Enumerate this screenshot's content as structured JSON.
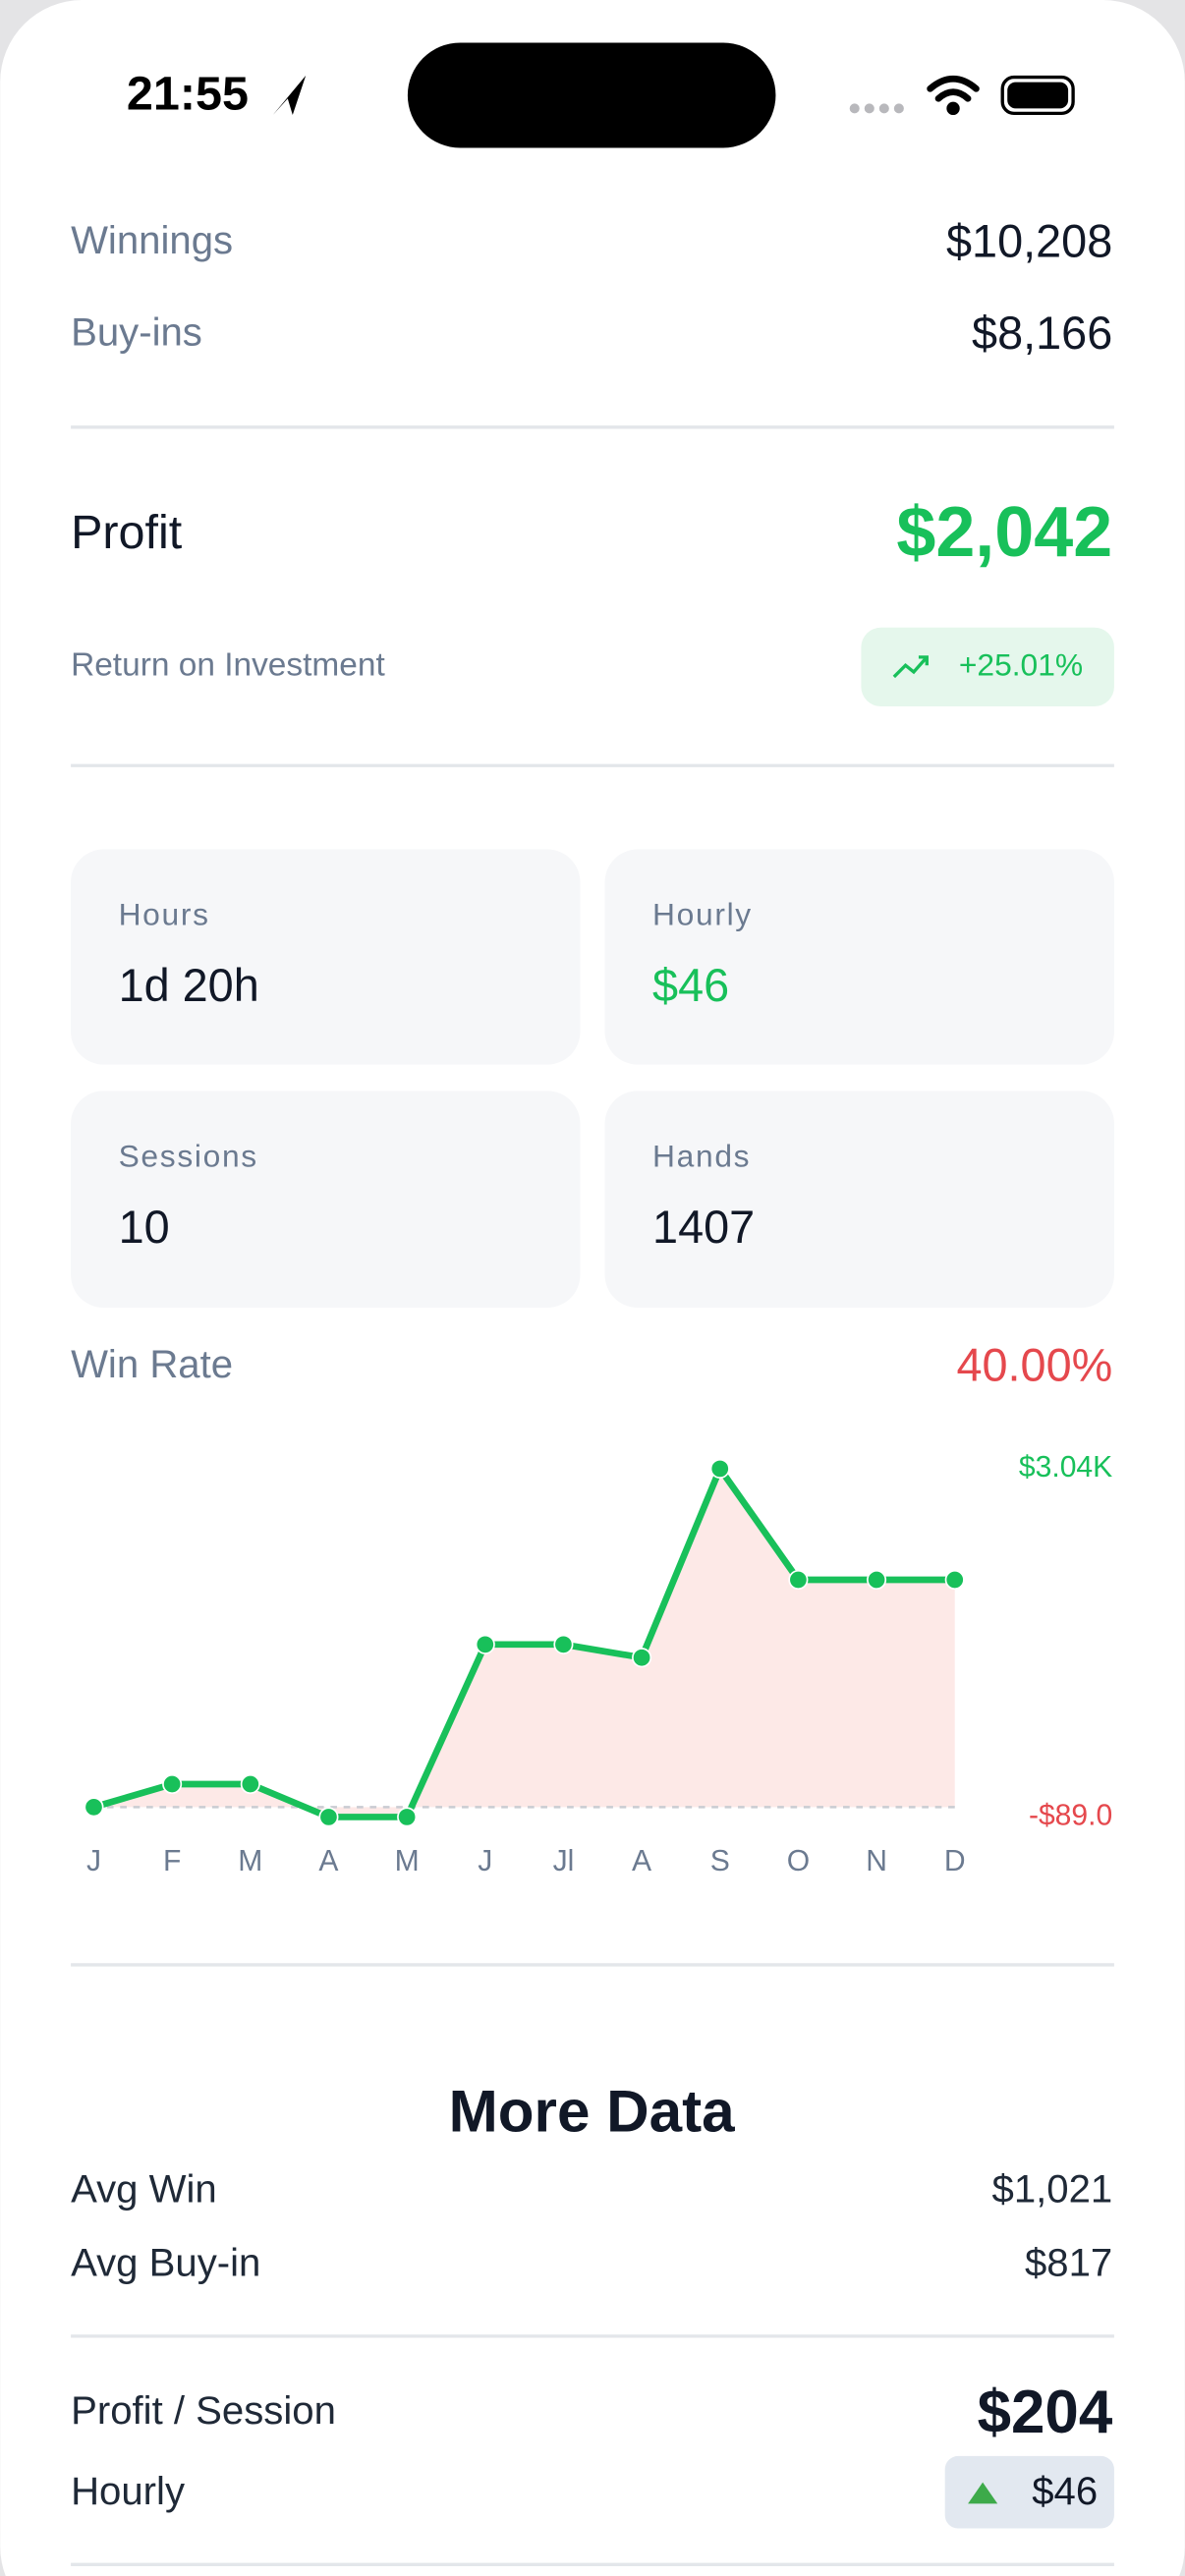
{
  "status_bar": {
    "time": "21:55"
  },
  "summary": {
    "winnings_label": "Winnings",
    "winnings": "$10,208",
    "buyins_label": "Buy-ins",
    "buyins": "$8,166",
    "profit_label": "Profit",
    "profit": "$2,042",
    "roi_label": "Return on Investment",
    "roi": "+25.01%"
  },
  "stats": [
    {
      "label": "Hours",
      "value": "1d 20h"
    },
    {
      "label": "Hourly",
      "value": "$46"
    },
    {
      "label": "Sessions",
      "value": "10"
    },
    {
      "label": "Hands",
      "value": "1407"
    }
  ],
  "win_rate": {
    "label": "Win Rate",
    "value": "40.00%"
  },
  "chart_data": {
    "type": "line",
    "categories": [
      "J",
      "F",
      "M",
      "A",
      "M",
      "J",
      "Jl",
      "A",
      "S",
      "O",
      "N",
      "D"
    ],
    "values": [
      0,
      206,
      206,
      -89,
      -89,
      1461,
      1461,
      1343,
      3040,
      2042,
      2042,
      2042
    ],
    "color": "#18c05a",
    "area_color": "#fde9e7",
    "ylim": [
      -89,
      3040
    ],
    "yticks": [
      {
        "value": 3040,
        "label": "$3.04K"
      },
      {
        "value": -89,
        "label": "-$89.0"
      }
    ]
  },
  "more_data": {
    "title": "More Data",
    "rows": [
      [
        "Avg Win",
        "$1,021"
      ],
      [
        "Avg Buy-in",
        "$817"
      ],
      [
        "Profit / Session",
        "$204"
      ],
      [
        "Hourly",
        "$46"
      ]
    ]
  }
}
